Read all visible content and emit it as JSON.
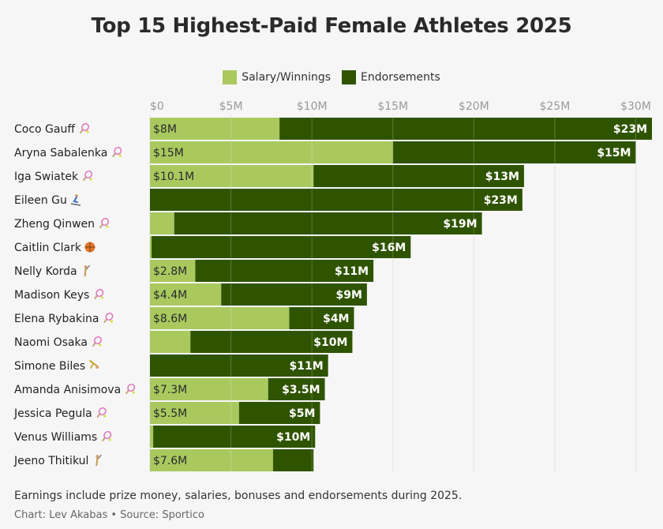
{
  "chart_data": {
    "type": "bar",
    "orientation": "horizontal",
    "stacked": true,
    "title": "Top 15 Highest-Paid Female Athletes 2025",
    "x_ticks": [
      "$0",
      "$5M",
      "$10M",
      "$15M",
      "$20M",
      "$25M",
      "$30M"
    ],
    "xlim": [
      0,
      31
    ],
    "grid": true,
    "legend_position": "top-center",
    "categories": [
      "Coco Gauff",
      "Aryna Sabalenka",
      "Iga Swiatek",
      "Eileen Gu",
      "Zheng Qinwen",
      "Caitlin Clark",
      "Nelly Korda",
      "Madison Keys",
      "Elena Rybakina",
      "Naomi Osaka",
      "Simone Biles",
      "Amanda Anisimova",
      "Jessica Pegula",
      "Venus Williams",
      "Jeeno Thitikul"
    ],
    "sport_icons": [
      "tennis-icon",
      "tennis-icon",
      "tennis-icon",
      "ski-icon",
      "tennis-icon",
      "basketball-icon",
      "golf-icon",
      "tennis-icon",
      "tennis-icon",
      "tennis-icon",
      "gymnastics-icon",
      "tennis-icon",
      "tennis-icon",
      "tennis-icon",
      "golf-icon"
    ],
    "series": [
      {
        "name": "Salary/Winnings",
        "color": "#a9c95f",
        "values": [
          8,
          15,
          10.1,
          0,
          1.5,
          0.1,
          2.8,
          4.4,
          8.6,
          2.5,
          0,
          7.3,
          5.5,
          0.2,
          7.6
        ],
        "labels": [
          "$8M",
          "$15M",
          "$10.1M",
          "",
          "",
          "",
          "$2.8M",
          "$4.4M",
          "$8.6M",
          "",
          "",
          "$7.3M",
          "$5.5M",
          "",
          "$7.6M"
        ]
      },
      {
        "name": "Endorsements",
        "color": "#2f5400",
        "values": [
          23,
          15,
          13,
          23,
          19,
          16,
          11,
          9,
          4,
          10,
          11,
          3.5,
          5,
          10,
          2.5
        ],
        "labels": [
          "$23M",
          "$15M",
          "$13M",
          "$23M",
          "$19M",
          "$16M",
          "$11M",
          "$9M",
          "$4M",
          "$10M",
          "$11M",
          "$3.5M",
          "$5M",
          "$10M",
          ""
        ]
      }
    ]
  },
  "note": "Earnings include prize money, salaries, bonuses and endorsements during 2025.",
  "credit": "Chart: Lev Akabas • Source: Sportico"
}
